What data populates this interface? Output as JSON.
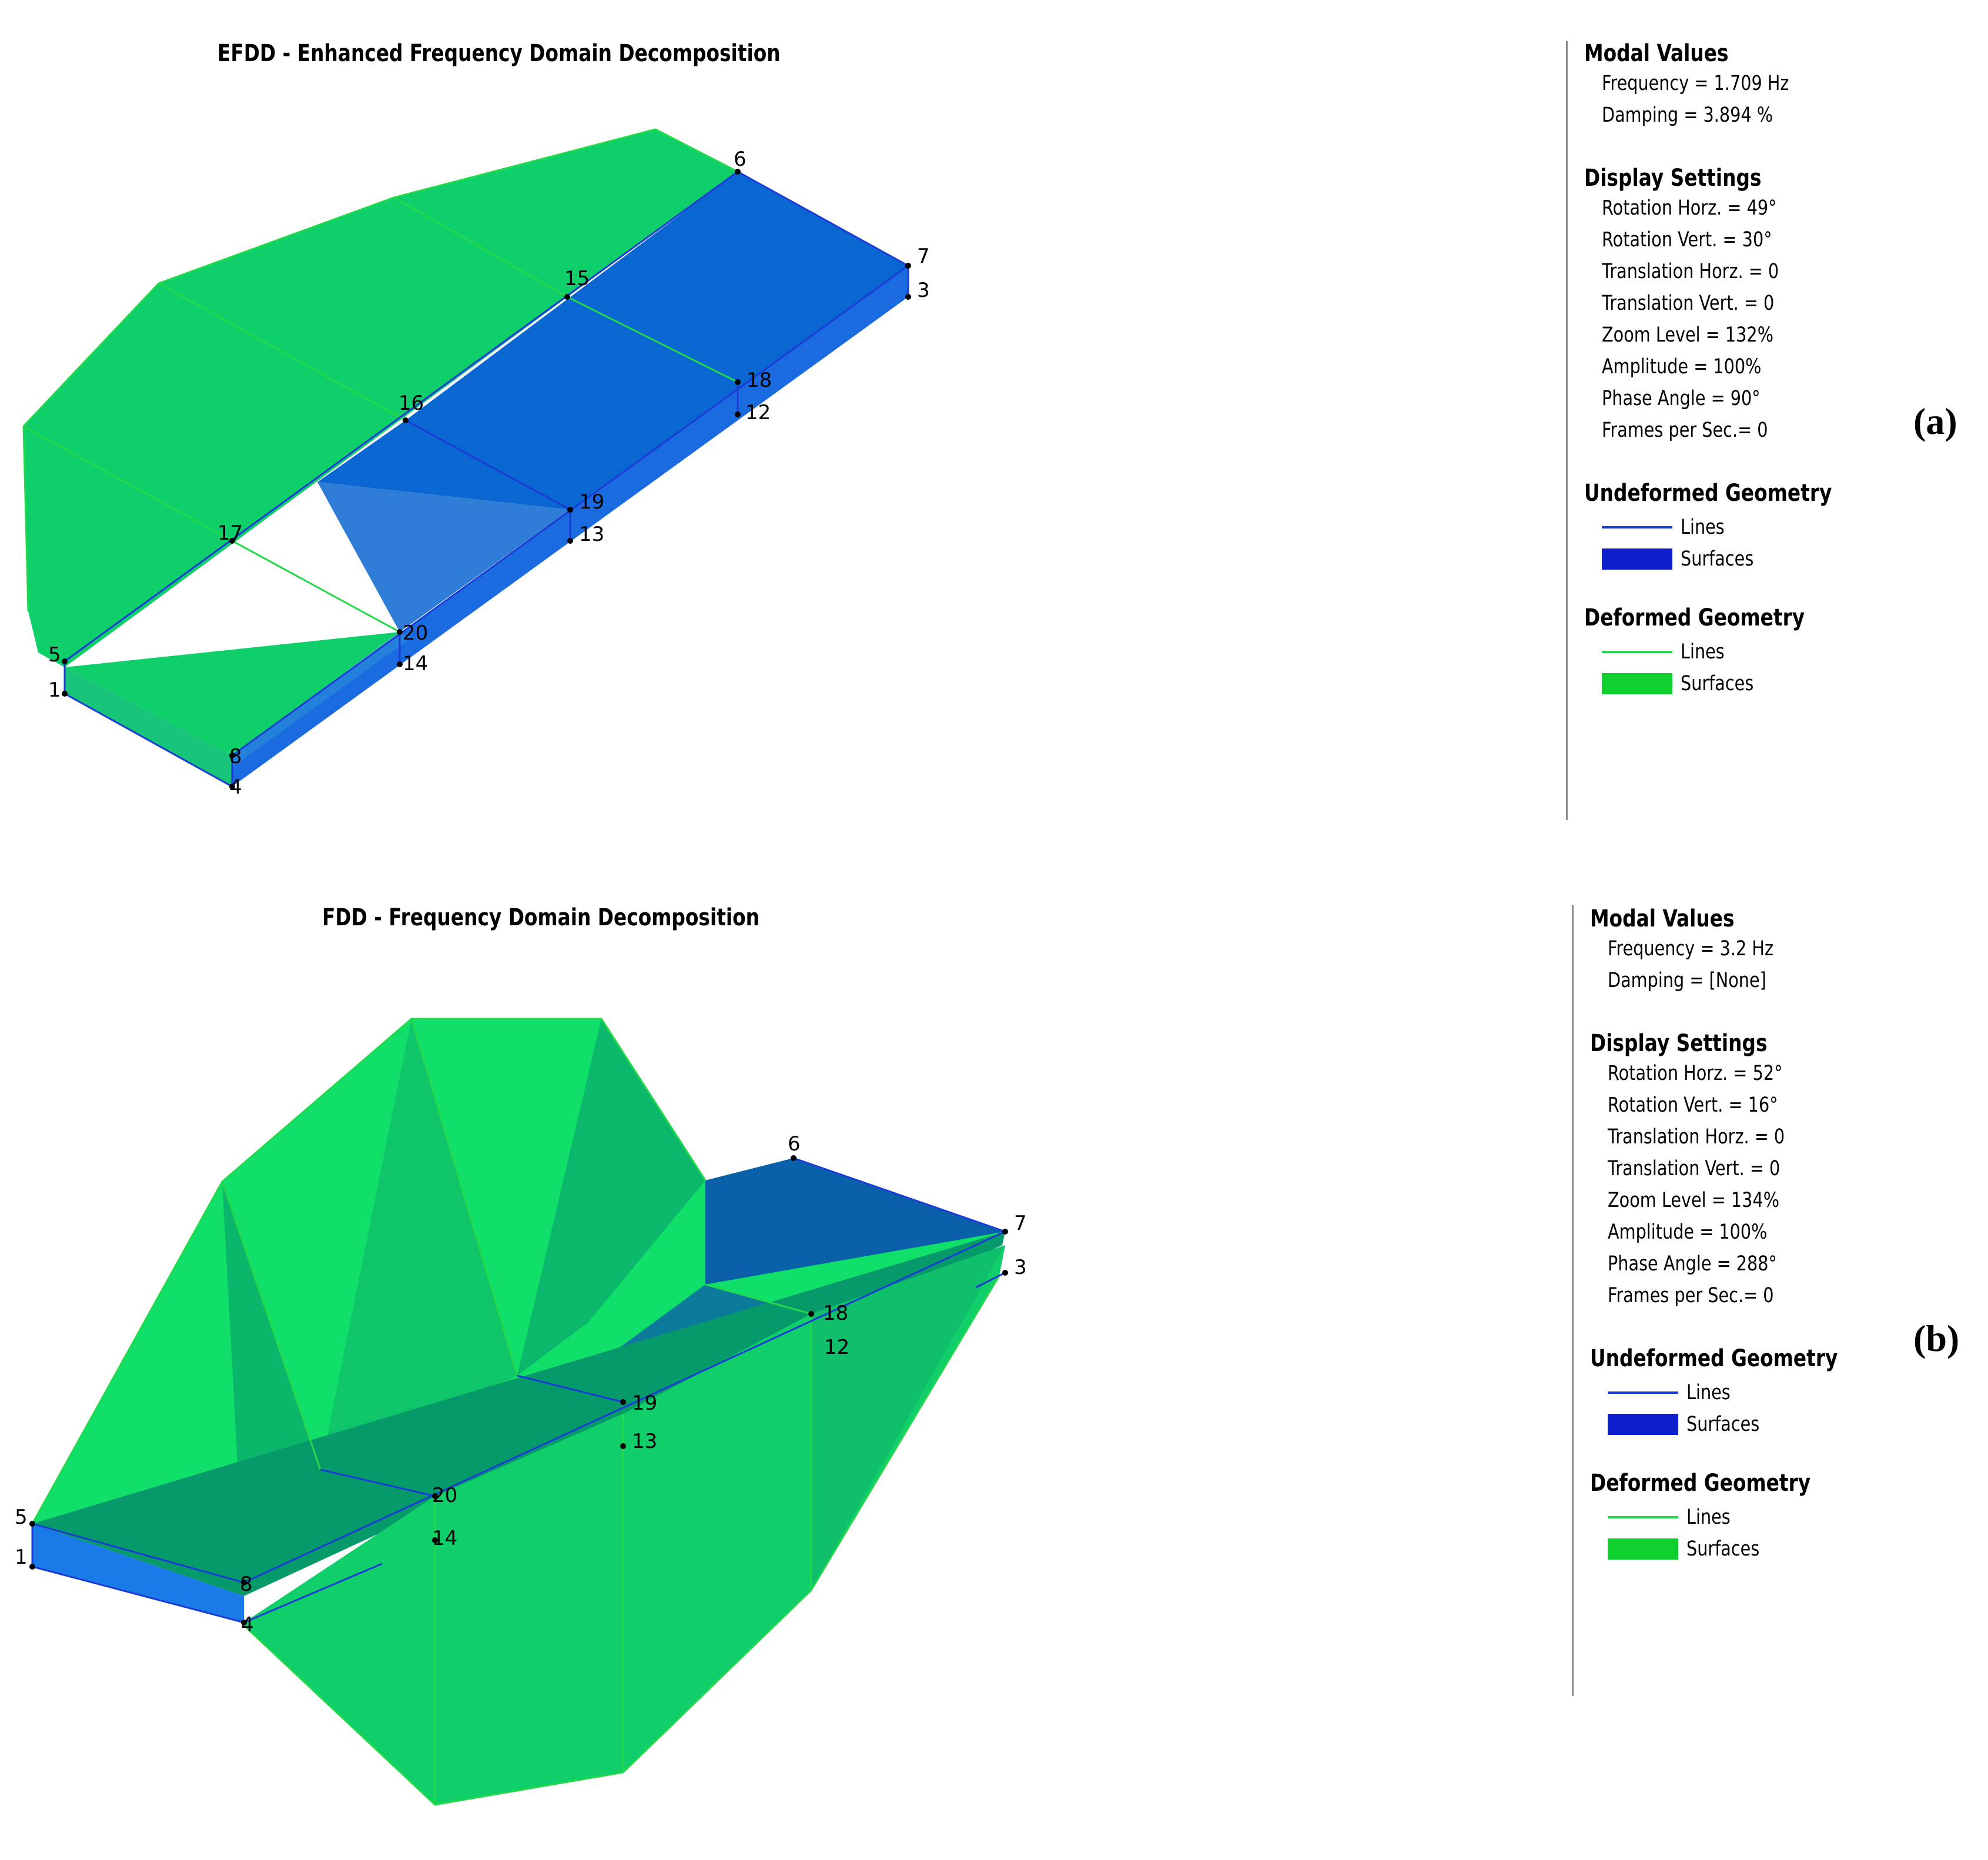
{
  "colors": {
    "undeformed_line": "#1a3cd6",
    "undeformed_surface": "#0d1fcc",
    "deformed_line": "#23d84a",
    "deformed_surface": "#10d030",
    "mesh_green": "#0fcf6a",
    "mesh_dark": "#079a6a",
    "mesh_blue": "#0a5fd0"
  },
  "panels": [
    {
      "id": "a",
      "label": "(a)",
      "title": "EFDD - Enhanced Frequency Domain Decomposition",
      "modal_values": {
        "header": "Modal Values",
        "frequency": "Frequency = 1.709 Hz",
        "damping": "Damping = 3.894 %"
      },
      "display_settings": {
        "header": "Display Settings",
        "items": [
          "Rotation Horz. = 49°",
          "Rotation Vert. = 30°",
          "Translation Horz. = 0",
          "Translation Vert. = 0",
          "Zoom Level = 132%",
          "Amplitude = 100%",
          "Phase Angle = 90°",
          "Frames per Sec.= 0"
        ]
      },
      "undeformed": {
        "header": "Undeformed Geometry",
        "lines": "Lines",
        "surfaces": "Surfaces"
      },
      "deformed": {
        "header": "Deformed Geometry",
        "lines": "Lines",
        "surfaces": "Surfaces"
      },
      "nodes": [
        "1",
        "4",
        "5",
        "6",
        "7",
        "3",
        "8",
        "12",
        "13",
        "14",
        "15",
        "16",
        "17",
        "18",
        "19",
        "20"
      ]
    },
    {
      "id": "b",
      "label": "(b)",
      "title": "FDD - Frequency Domain Decomposition",
      "modal_values": {
        "header": "Modal Values",
        "frequency": "Frequency = 3.2 Hz",
        "damping": "Damping = [None]"
      },
      "display_settings": {
        "header": "Display Settings",
        "items": [
          "Rotation Horz. = 52°",
          "Rotation Vert. = 16°",
          "Translation Horz. = 0",
          "Translation Vert. = 0",
          "Zoom Level = 134%",
          "Amplitude = 100%",
          "Phase Angle = 288°",
          "Frames per Sec.= 0"
        ]
      },
      "undeformed": {
        "header": "Undeformed Geometry",
        "lines": "Lines",
        "surfaces": "Surfaces"
      },
      "deformed": {
        "header": "Deformed Geometry",
        "lines": "Lines",
        "surfaces": "Surfaces"
      },
      "nodes": [
        "1",
        "4",
        "5",
        "6",
        "7",
        "3",
        "8",
        "12",
        "13",
        "14",
        "18",
        "19",
        "20"
      ]
    }
  ]
}
